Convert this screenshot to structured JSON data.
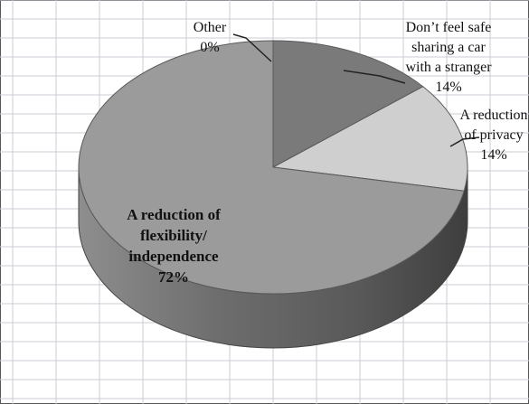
{
  "chart_data": {
    "type": "pie",
    "style": "3d",
    "slices": [
      {
        "label_lines": [
          "Other",
          "0%"
        ],
        "value": 0,
        "color": "#8a8a8a"
      },
      {
        "label_lines": [
          "Don’t feel safe",
          "sharing a car",
          "with a stranger",
          "14%"
        ],
        "value": 14,
        "color": "#7a7a7a"
      },
      {
        "label_lines": [
          "A reduction",
          "of privacy",
          "14%"
        ],
        "value": 14,
        "color": "#cfcfcf"
      },
      {
        "label_lines": [
          "A reduction of",
          "flexibility/",
          "independence",
          "72%"
        ],
        "value": 72,
        "color": "#9b9b9b"
      }
    ],
    "legend": "none",
    "grid": true
  }
}
